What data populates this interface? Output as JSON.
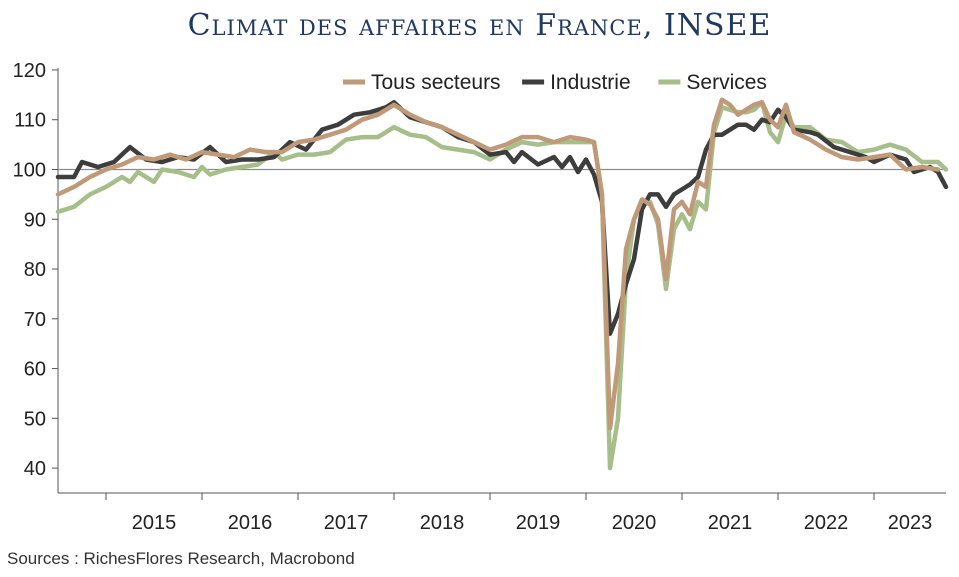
{
  "chart_data": {
    "type": "line",
    "title": "Climat des affaires en France, INSEE",
    "source": "Sources : RichesFlores Research, Macrobond",
    "ylim": [
      35,
      122
    ],
    "yticks": [
      40,
      50,
      60,
      70,
      80,
      90,
      100,
      110,
      120
    ],
    "reference_line": 100,
    "x_range": [
      "2014-07",
      "2023-10"
    ],
    "year_ticks": [
      "2015",
      "2016",
      "2017",
      "2018",
      "2019",
      "2020",
      "2021",
      "2022",
      "2023"
    ],
    "legend_position": "top",
    "grid": false,
    "series": [
      {
        "name": "Tous secteurs",
        "color": "#c09a78",
        "points": [
          [
            "2014-07",
            95.0
          ],
          [
            "2014-09",
            96.5
          ],
          [
            "2014-11",
            98.5
          ],
          [
            "2015-01",
            100.0
          ],
          [
            "2015-03",
            101.0
          ],
          [
            "2015-05",
            102.5
          ],
          [
            "2015-07",
            102.0
          ],
          [
            "2015-09",
            103.0
          ],
          [
            "2015-11",
            102.0
          ],
          [
            "2016-01",
            103.5
          ],
          [
            "2016-03",
            103.0
          ],
          [
            "2016-05",
            102.5
          ],
          [
            "2016-07",
            104.0
          ],
          [
            "2016-09",
            103.5
          ],
          [
            "2016-11",
            103.5
          ],
          [
            "2017-01",
            105.5
          ],
          [
            "2017-03",
            106.0
          ],
          [
            "2017-05",
            107.0
          ],
          [
            "2017-07",
            108.0
          ],
          [
            "2017-09",
            110.0
          ],
          [
            "2017-11",
            111.0
          ],
          [
            "2018-01",
            113.0
          ],
          [
            "2018-03",
            111.0
          ],
          [
            "2018-05",
            109.5
          ],
          [
            "2018-07",
            108.5
          ],
          [
            "2018-09",
            107.0
          ],
          [
            "2018-11",
            105.5
          ],
          [
            "2019-01",
            104.0
          ],
          [
            "2019-03",
            105.0
          ],
          [
            "2019-05",
            106.5
          ],
          [
            "2019-07",
            106.5
          ],
          [
            "2019-09",
            105.5
          ],
          [
            "2019-11",
            106.5
          ],
          [
            "2020-01",
            106.0
          ],
          [
            "2020-02",
            105.5
          ],
          [
            "2020-03",
            95.0
          ],
          [
            "2020-04",
            48.0
          ],
          [
            "2020-05",
            61.0
          ],
          [
            "2020-06",
            84.0
          ],
          [
            "2020-07",
            90.0
          ],
          [
            "2020-08",
            94.0
          ],
          [
            "2020-09",
            93.0
          ],
          [
            "2020-10",
            90.0
          ],
          [
            "2020-11",
            78.0
          ],
          [
            "2020-12",
            92.0
          ],
          [
            "2021-01",
            93.5
          ],
          [
            "2021-02",
            91.0
          ],
          [
            "2021-03",
            97.5
          ],
          [
            "2021-04",
            96.5
          ],
          [
            "2021-05",
            109.0
          ],
          [
            "2021-06",
            114.0
          ],
          [
            "2021-07",
            113.0
          ],
          [
            "2021-08",
            111.0
          ],
          [
            "2021-09",
            112.0
          ],
          [
            "2021-10",
            113.0
          ],
          [
            "2021-11",
            113.5
          ],
          [
            "2021-12",
            110.0
          ],
          [
            "2022-01",
            108.5
          ],
          [
            "2022-02",
            113.0
          ],
          [
            "2022-03",
            107.5
          ],
          [
            "2022-05",
            106.0
          ],
          [
            "2022-07",
            104.0
          ],
          [
            "2022-09",
            102.5
          ],
          [
            "2022-11",
            102.0
          ],
          [
            "2023-01",
            102.5
          ],
          [
            "2023-03",
            103.0
          ],
          [
            "2023-05",
            100.0
          ],
          [
            "2023-07",
            100.5
          ],
          [
            "2023-09",
            100.0
          ]
        ]
      },
      {
        "name": "Industrie",
        "color": "#3d3d3d",
        "points": [
          [
            "2014-07",
            98.5
          ],
          [
            "2014-09",
            98.5
          ],
          [
            "2014-10",
            101.5
          ],
          [
            "2014-12",
            100.5
          ],
          [
            "2015-02",
            101.5
          ],
          [
            "2015-04",
            104.5
          ],
          [
            "2015-06",
            102.0
          ],
          [
            "2015-08",
            101.5
          ],
          [
            "2015-10",
            102.5
          ],
          [
            "2015-12",
            102.0
          ],
          [
            "2016-02",
            104.5
          ],
          [
            "2016-04",
            101.5
          ],
          [
            "2016-06",
            102.0
          ],
          [
            "2016-08",
            102.0
          ],
          [
            "2016-10",
            102.5
          ],
          [
            "2016-12",
            105.5
          ],
          [
            "2017-02",
            104.0
          ],
          [
            "2017-04",
            108.0
          ],
          [
            "2017-06",
            109.0
          ],
          [
            "2017-08",
            111.0
          ],
          [
            "2017-10",
            111.5
          ],
          [
            "2017-12",
            112.5
          ],
          [
            "2018-01",
            113.5
          ],
          [
            "2018-03",
            110.5
          ],
          [
            "2018-05",
            109.5
          ],
          [
            "2018-07",
            108.5
          ],
          [
            "2018-09",
            106.5
          ],
          [
            "2018-11",
            105.5
          ],
          [
            "2019-01",
            103.0
          ],
          [
            "2019-03",
            103.5
          ],
          [
            "2019-04",
            101.5
          ],
          [
            "2019-05",
            103.5
          ],
          [
            "2019-07",
            101.0
          ],
          [
            "2019-09",
            102.5
          ],
          [
            "2019-10",
            100.5
          ],
          [
            "2019-11",
            102.5
          ],
          [
            "2019-12",
            99.5
          ],
          [
            "2020-01",
            102.0
          ],
          [
            "2020-02",
            99.0
          ],
          [
            "2020-03",
            93.5
          ],
          [
            "2020-04",
            67.0
          ],
          [
            "2020-05",
            71.0
          ],
          [
            "2020-06",
            77.0
          ],
          [
            "2020-07",
            82.0
          ],
          [
            "2020-08",
            92.0
          ],
          [
            "2020-09",
            95.0
          ],
          [
            "2020-10",
            95.0
          ],
          [
            "2020-11",
            92.5
          ],
          [
            "2020-12",
            95.0
          ],
          [
            "2021-02",
            97.0
          ],
          [
            "2021-03",
            98.5
          ],
          [
            "2021-04",
            104.0
          ],
          [
            "2021-05",
            107.0
          ],
          [
            "2021-06",
            107.0
          ],
          [
            "2021-07",
            108.0
          ],
          [
            "2021-08",
            109.0
          ],
          [
            "2021-09",
            109.0
          ],
          [
            "2021-10",
            108.0
          ],
          [
            "2021-11",
            110.0
          ],
          [
            "2021-12",
            109.5
          ],
          [
            "2022-01",
            112.0
          ],
          [
            "2022-02",
            110.5
          ],
          [
            "2022-03",
            108.0
          ],
          [
            "2022-05",
            107.5
          ],
          [
            "2022-06",
            107.0
          ],
          [
            "2022-08",
            104.5
          ],
          [
            "2022-10",
            103.5
          ],
          [
            "2022-12",
            102.5
          ],
          [
            "2023-01",
            101.5
          ],
          [
            "2023-03",
            103.0
          ],
          [
            "2023-05",
            102.0
          ],
          [
            "2023-06",
            99.5
          ],
          [
            "2023-08",
            100.5
          ],
          [
            "2023-09",
            99.5
          ],
          [
            "2023-10",
            96.5
          ]
        ]
      },
      {
        "name": "Services",
        "color": "#a6be8a",
        "points": [
          [
            "2014-07",
            91.5
          ],
          [
            "2014-09",
            92.5
          ],
          [
            "2014-11",
            95.0
          ],
          [
            "2015-01",
            96.5
          ],
          [
            "2015-03",
            98.5
          ],
          [
            "2015-04",
            97.5
          ],
          [
            "2015-05",
            99.5
          ],
          [
            "2015-07",
            97.5
          ],
          [
            "2015-08",
            100.0
          ],
          [
            "2015-10",
            99.5
          ],
          [
            "2015-12",
            98.5
          ],
          [
            "2016-01",
            100.5
          ],
          [
            "2016-02",
            99.0
          ],
          [
            "2016-04",
            100.0
          ],
          [
            "2016-06",
            100.5
          ],
          [
            "2016-08",
            101.0
          ],
          [
            "2016-10",
            103.5
          ],
          [
            "2016-11",
            102.0
          ],
          [
            "2017-01",
            103.0
          ],
          [
            "2017-03",
            103.0
          ],
          [
            "2017-05",
            103.5
          ],
          [
            "2017-07",
            106.0
          ],
          [
            "2017-09",
            106.5
          ],
          [
            "2017-11",
            106.5
          ],
          [
            "2018-01",
            108.5
          ],
          [
            "2018-03",
            107.0
          ],
          [
            "2018-05",
            106.5
          ],
          [
            "2018-07",
            104.5
          ],
          [
            "2018-09",
            104.0
          ],
          [
            "2018-11",
            103.5
          ],
          [
            "2019-01",
            102.0
          ],
          [
            "2019-03",
            104.0
          ],
          [
            "2019-05",
            105.5
          ],
          [
            "2019-07",
            105.0
          ],
          [
            "2019-09",
            105.5
          ],
          [
            "2019-11",
            105.5
          ],
          [
            "2020-02",
            105.5
          ],
          [
            "2020-03",
            95.0
          ],
          [
            "2020-04",
            40.0
          ],
          [
            "2020-05",
            50.0
          ],
          [
            "2020-06",
            78.0
          ],
          [
            "2020-07",
            90.0
          ],
          [
            "2020-08",
            93.5
          ],
          [
            "2020-09",
            93.5
          ],
          [
            "2020-10",
            89.0
          ],
          [
            "2020-11",
            76.0
          ],
          [
            "2020-12",
            88.0
          ],
          [
            "2021-01",
            91.0
          ],
          [
            "2021-02",
            88.0
          ],
          [
            "2021-03",
            93.5
          ],
          [
            "2021-04",
            92.0
          ],
          [
            "2021-05",
            107.5
          ],
          [
            "2021-06",
            112.5
          ],
          [
            "2021-07",
            112.0
          ],
          [
            "2021-08",
            111.5
          ],
          [
            "2021-09",
            111.5
          ],
          [
            "2021-10",
            112.0
          ],
          [
            "2021-11",
            113.5
          ],
          [
            "2021-12",
            107.5
          ],
          [
            "2022-01",
            105.5
          ],
          [
            "2022-02",
            111.0
          ],
          [
            "2022-03",
            108.5
          ],
          [
            "2022-05",
            108.5
          ],
          [
            "2022-07",
            106.0
          ],
          [
            "2022-09",
            105.5
          ],
          [
            "2022-11",
            103.5
          ],
          [
            "2023-01",
            104.0
          ],
          [
            "2023-03",
            105.0
          ],
          [
            "2023-05",
            104.0
          ],
          [
            "2023-07",
            101.5
          ],
          [
            "2023-09",
            101.5
          ],
          [
            "2023-10",
            100.0
          ]
        ]
      }
    ]
  }
}
